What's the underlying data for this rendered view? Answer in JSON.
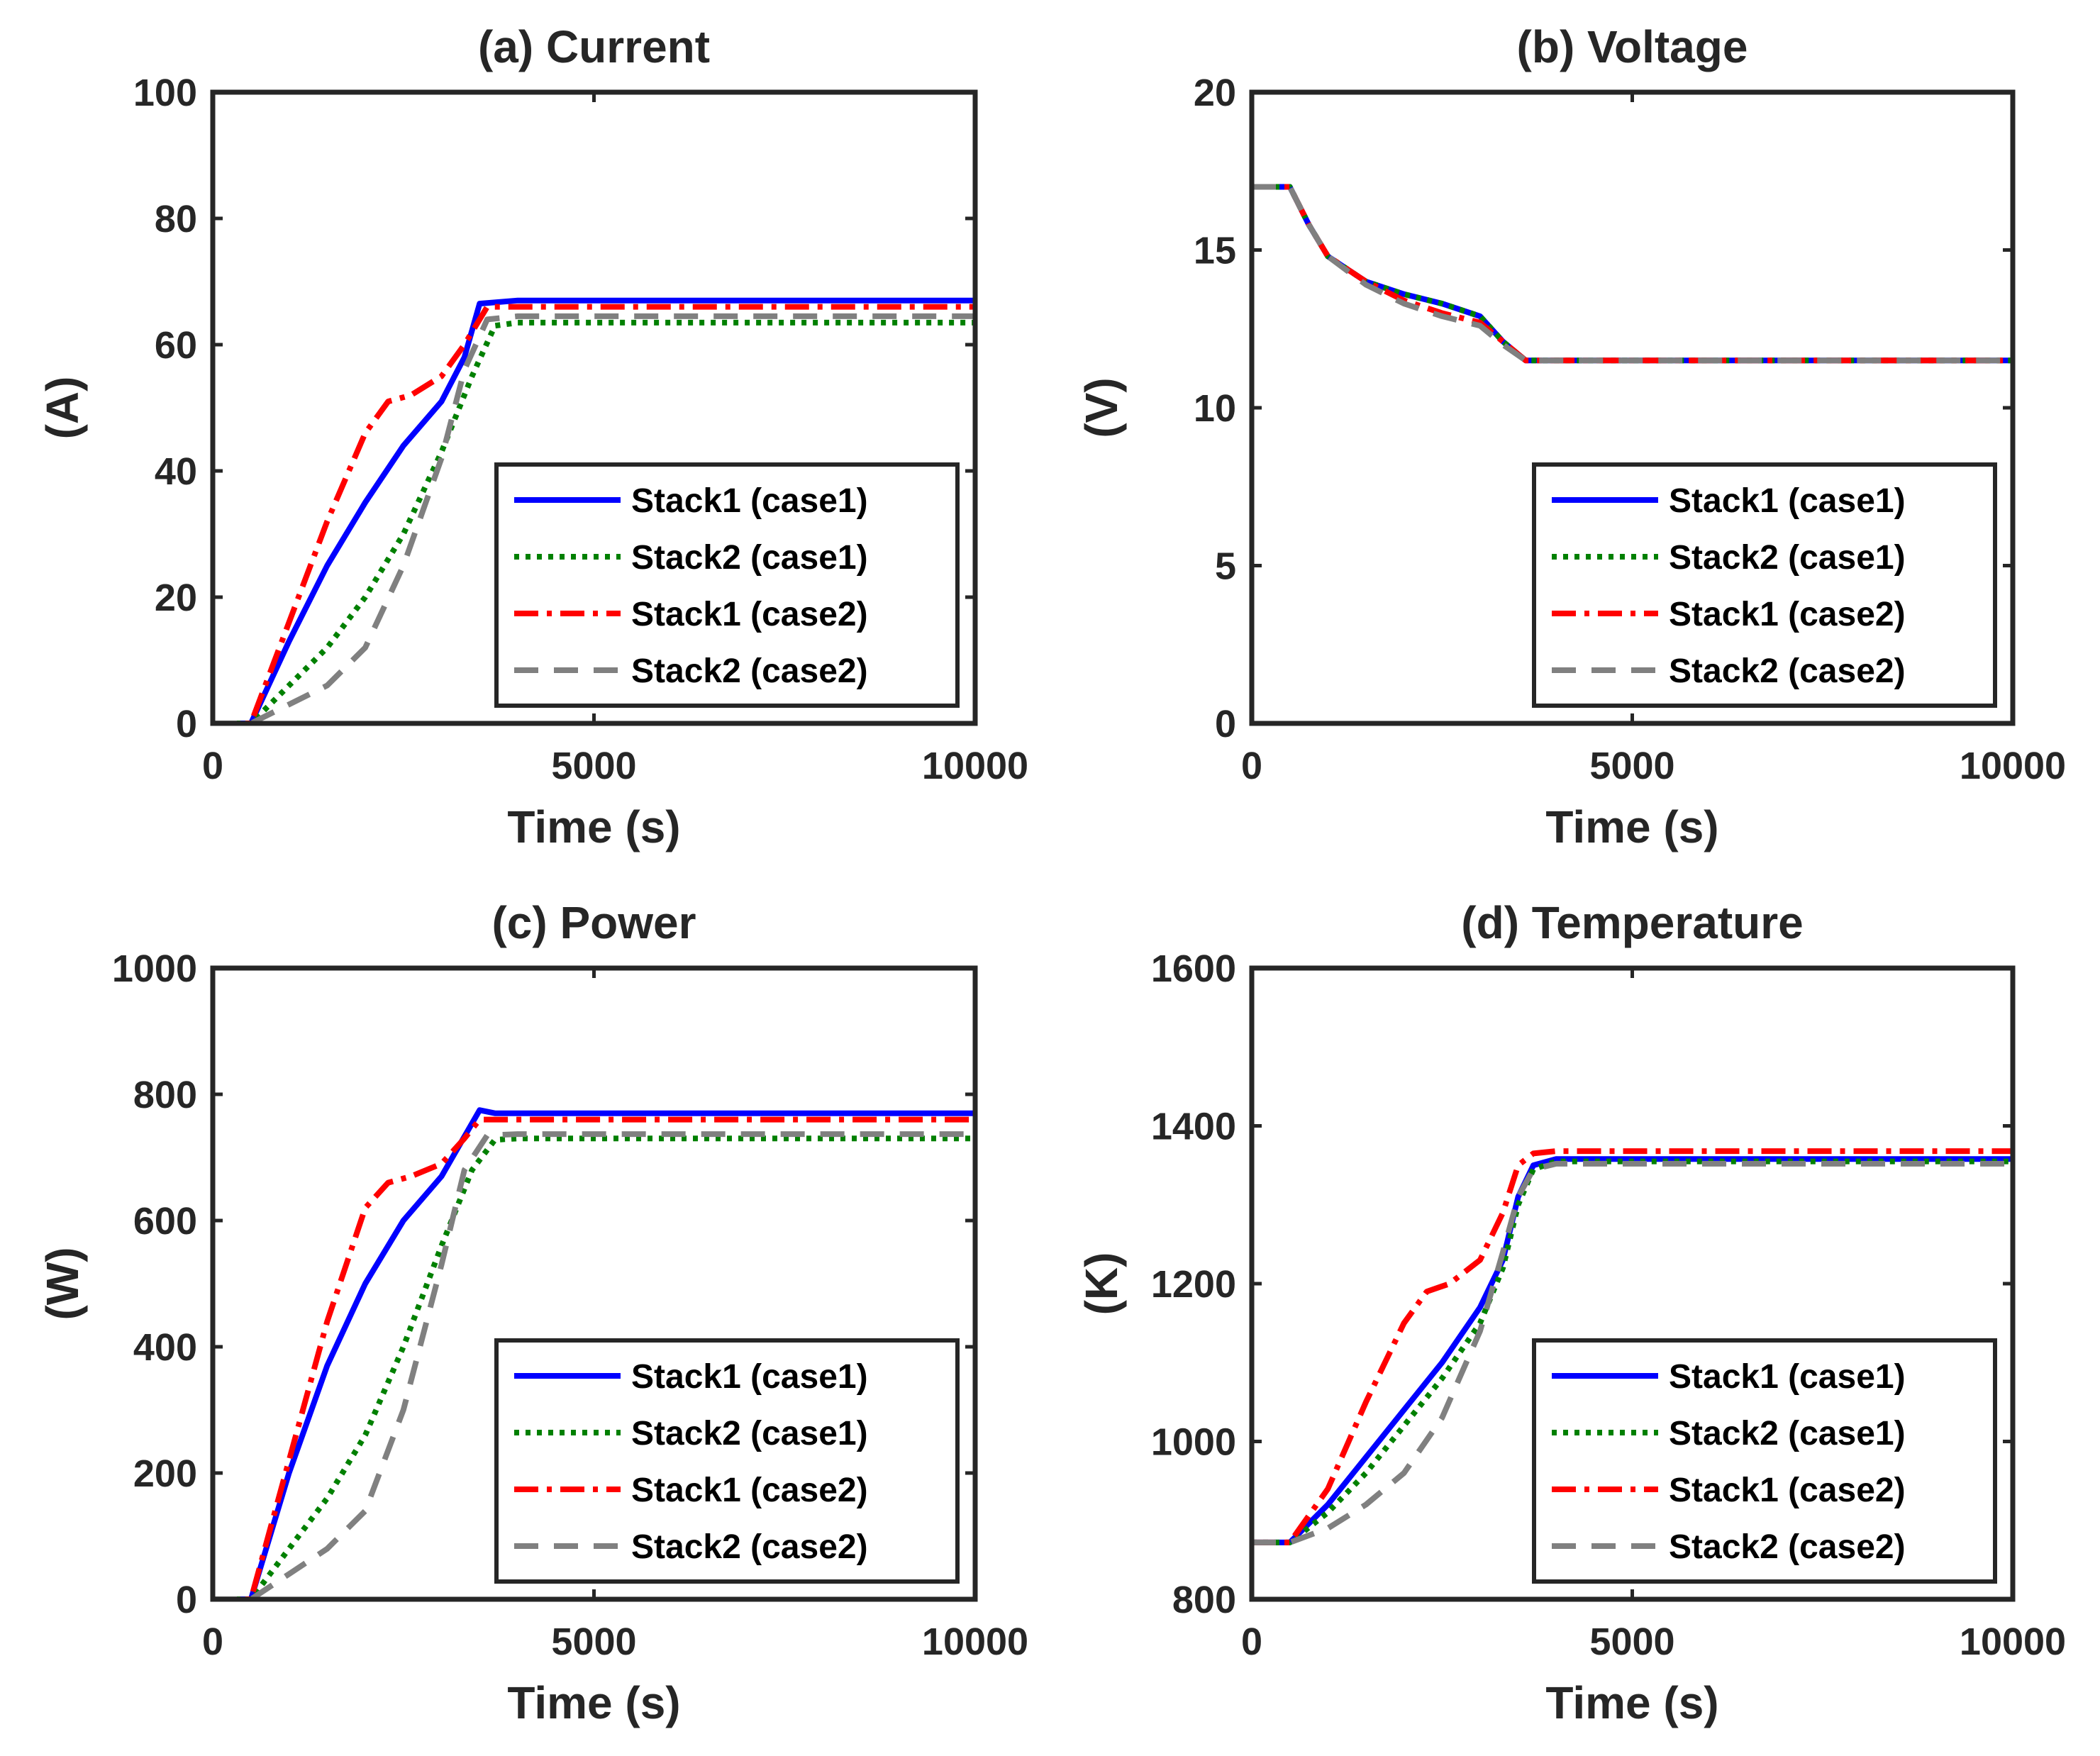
{
  "chart_data": [
    {
      "type": "line",
      "title": "(a) Current",
      "xlabel": "Time (s)",
      "ylabel": "(A)",
      "xlim": [
        0,
        10000
      ],
      "ylim": [
        0,
        100
      ],
      "xticks": [
        0,
        5000,
        10000
      ],
      "yticks": [
        0,
        20,
        40,
        60,
        80,
        100
      ],
      "legend_position": "bottom-right",
      "series": [
        {
          "name": "Stack1 (case1)",
          "color": "#0000ff",
          "style": "solid",
          "x": [
            0,
            500,
            1000,
            1500,
            2000,
            2500,
            3000,
            3300,
            3500,
            4000,
            10000
          ],
          "y": [
            0,
            0,
            13,
            25,
            35,
            44,
            51,
            58,
            66.5,
            67,
            67
          ]
        },
        {
          "name": "Stack2 (case1)",
          "color": "#008000",
          "style": "dotted",
          "x": [
            0,
            500,
            1000,
            1500,
            2000,
            2500,
            3000,
            3400,
            3700,
            4000,
            10000
          ],
          "y": [
            0,
            0,
            6,
            12,
            20,
            30,
            43,
            55,
            63,
            63.5,
            63.5
          ]
        },
        {
          "name": "Stack1 (case2)",
          "color": "#ff0000",
          "style": "dashdot",
          "x": [
            0,
            500,
            1000,
            1500,
            2000,
            2300,
            2600,
            3000,
            3300,
            3600,
            4000,
            10000
          ],
          "y": [
            0,
            0,
            16,
            32,
            46,
            51,
            52,
            55,
            60,
            66,
            66,
            66
          ]
        },
        {
          "name": "Stack2 (case2)",
          "color": "#808080",
          "style": "dashed",
          "x": [
            0,
            500,
            1000,
            1500,
            2000,
            2500,
            3000,
            3300,
            3600,
            4000,
            10000
          ],
          "y": [
            0,
            0,
            3,
            6,
            12,
            25,
            42,
            56,
            64,
            64.5,
            64.5
          ]
        }
      ]
    },
    {
      "type": "line",
      "title": "(b) Voltage",
      "xlabel": "Time (s)",
      "ylabel": "(V)",
      "xlim": [
        0,
        10000
      ],
      "ylim": [
        0,
        20
      ],
      "xticks": [
        0,
        5000,
        10000
      ],
      "yticks": [
        0,
        5,
        10,
        15,
        20
      ],
      "legend_position": "bottom-right",
      "series": [
        {
          "name": "Stack1 (case1)",
          "color": "#0000ff",
          "style": "solid",
          "x": [
            0,
            500,
            750,
            1000,
            1500,
            2000,
            2500,
            3000,
            3300,
            3600,
            4000,
            10000
          ],
          "y": [
            17,
            17,
            15.8,
            14.8,
            14.0,
            13.6,
            13.3,
            12.9,
            12.1,
            11.5,
            11.5,
            11.5
          ]
        },
        {
          "name": "Stack2 (case1)",
          "color": "#008000",
          "style": "dotted",
          "x": [
            0,
            500,
            750,
            1000,
            1500,
            2000,
            2500,
            3000,
            3300,
            3600,
            4000,
            10000
          ],
          "y": [
            17,
            17,
            15.8,
            14.8,
            14.0,
            13.6,
            13.3,
            12.9,
            12.1,
            11.5,
            11.5,
            11.5
          ]
        },
        {
          "name": "Stack1 (case2)",
          "color": "#ff0000",
          "style": "dashdot",
          "x": [
            0,
            500,
            750,
            1000,
            1500,
            2000,
            2500,
            3000,
            3300,
            3600,
            4000,
            10000
          ],
          "y": [
            17,
            17,
            15.8,
            14.8,
            14.0,
            13.4,
            13.0,
            12.7,
            12.1,
            11.5,
            11.5,
            11.5
          ]
        },
        {
          "name": "Stack2 (case2)",
          "color": "#808080",
          "style": "dashed",
          "x": [
            0,
            500,
            750,
            1000,
            1500,
            2000,
            2500,
            3000,
            3300,
            3600,
            4000,
            10000
          ],
          "y": [
            17,
            17,
            15.8,
            14.8,
            13.9,
            13.3,
            12.9,
            12.6,
            12.0,
            11.5,
            11.5,
            11.5
          ]
        }
      ]
    },
    {
      "type": "line",
      "title": "(c) Power",
      "xlabel": "Time (s)",
      "ylabel": "(W)",
      "xlim": [
        0,
        10000
      ],
      "ylim": [
        0,
        1000
      ],
      "xticks": [
        0,
        5000,
        10000
      ],
      "yticks": [
        0,
        200,
        400,
        600,
        800,
        1000
      ],
      "legend_position": "bottom-right",
      "series": [
        {
          "name": "Stack1 (case1)",
          "color": "#0000ff",
          "style": "solid",
          "x": [
            0,
            500,
            1000,
            1500,
            2000,
            2500,
            3000,
            3500,
            3700,
            10000
          ],
          "y": [
            0,
            0,
            200,
            370,
            500,
            600,
            670,
            775,
            770,
            770
          ]
        },
        {
          "name": "Stack2 (case1)",
          "color": "#008000",
          "style": "dotted",
          "x": [
            0,
            500,
            1000,
            1500,
            2000,
            2500,
            3000,
            3400,
            3700,
            4000,
            10000
          ],
          "y": [
            0,
            0,
            80,
            160,
            260,
            400,
            560,
            680,
            728,
            730,
            730
          ]
        },
        {
          "name": "Stack1 (case2)",
          "color": "#ff0000",
          "style": "dashdot",
          "x": [
            0,
            500,
            1000,
            1500,
            2000,
            2300,
            2600,
            3000,
            3300,
            3500,
            4000,
            10000
          ],
          "y": [
            0,
            0,
            220,
            440,
            620,
            660,
            670,
            690,
            730,
            760,
            760,
            760
          ]
        },
        {
          "name": "Stack2 (case2)",
          "color": "#808080",
          "style": "dashed",
          "x": [
            0,
            500,
            1000,
            1500,
            2000,
            2500,
            3000,
            3300,
            3600,
            4000,
            10000
          ],
          "y": [
            0,
            0,
            40,
            80,
            140,
            300,
            530,
            680,
            735,
            737,
            737
          ]
        }
      ]
    },
    {
      "type": "line",
      "title": "(d) Temperature",
      "xlabel": "Time (s)",
      "ylabel": "(K)",
      "xlim": [
        0,
        10000
      ],
      "ylim": [
        800,
        1600
      ],
      "xticks": [
        0,
        5000,
        10000
      ],
      "yticks": [
        800,
        1000,
        1200,
        1400,
        1600
      ],
      "legend_position": "bottom-right",
      "series": [
        {
          "name": "Stack1 (case1)",
          "color": "#0000ff",
          "style": "solid",
          "x": [
            0,
            500,
            1000,
            1500,
            2000,
            2500,
            3000,
            3300,
            3500,
            3700,
            4000,
            10000
          ],
          "y": [
            872,
            872,
            920,
            980,
            1040,
            1100,
            1170,
            1230,
            1310,
            1350,
            1358,
            1358
          ]
        },
        {
          "name": "Stack2 (case1)",
          "color": "#008000",
          "style": "dotted",
          "x": [
            0,
            500,
            1000,
            1500,
            2000,
            2500,
            3000,
            3300,
            3500,
            3700,
            4000,
            10000
          ],
          "y": [
            872,
            872,
            910,
            960,
            1020,
            1080,
            1150,
            1220,
            1300,
            1345,
            1355,
            1355
          ]
        },
        {
          "name": "Stack1 (case2)",
          "color": "#ff0000",
          "style": "dashdot",
          "x": [
            0,
            500,
            1000,
            1500,
            2000,
            2300,
            2600,
            3000,
            3300,
            3500,
            3700,
            4000,
            10000
          ],
          "y": [
            872,
            872,
            940,
            1050,
            1150,
            1190,
            1200,
            1230,
            1290,
            1350,
            1365,
            1368,
            1368
          ]
        },
        {
          "name": "Stack2 (case2)",
          "color": "#808080",
          "style": "dashed",
          "x": [
            0,
            500,
            1000,
            1500,
            2000,
            2500,
            3000,
            3300,
            3500,
            3700,
            4000,
            10000
          ],
          "y": [
            872,
            872,
            890,
            920,
            960,
            1030,
            1140,
            1240,
            1310,
            1345,
            1352,
            1352
          ]
        }
      ]
    }
  ]
}
